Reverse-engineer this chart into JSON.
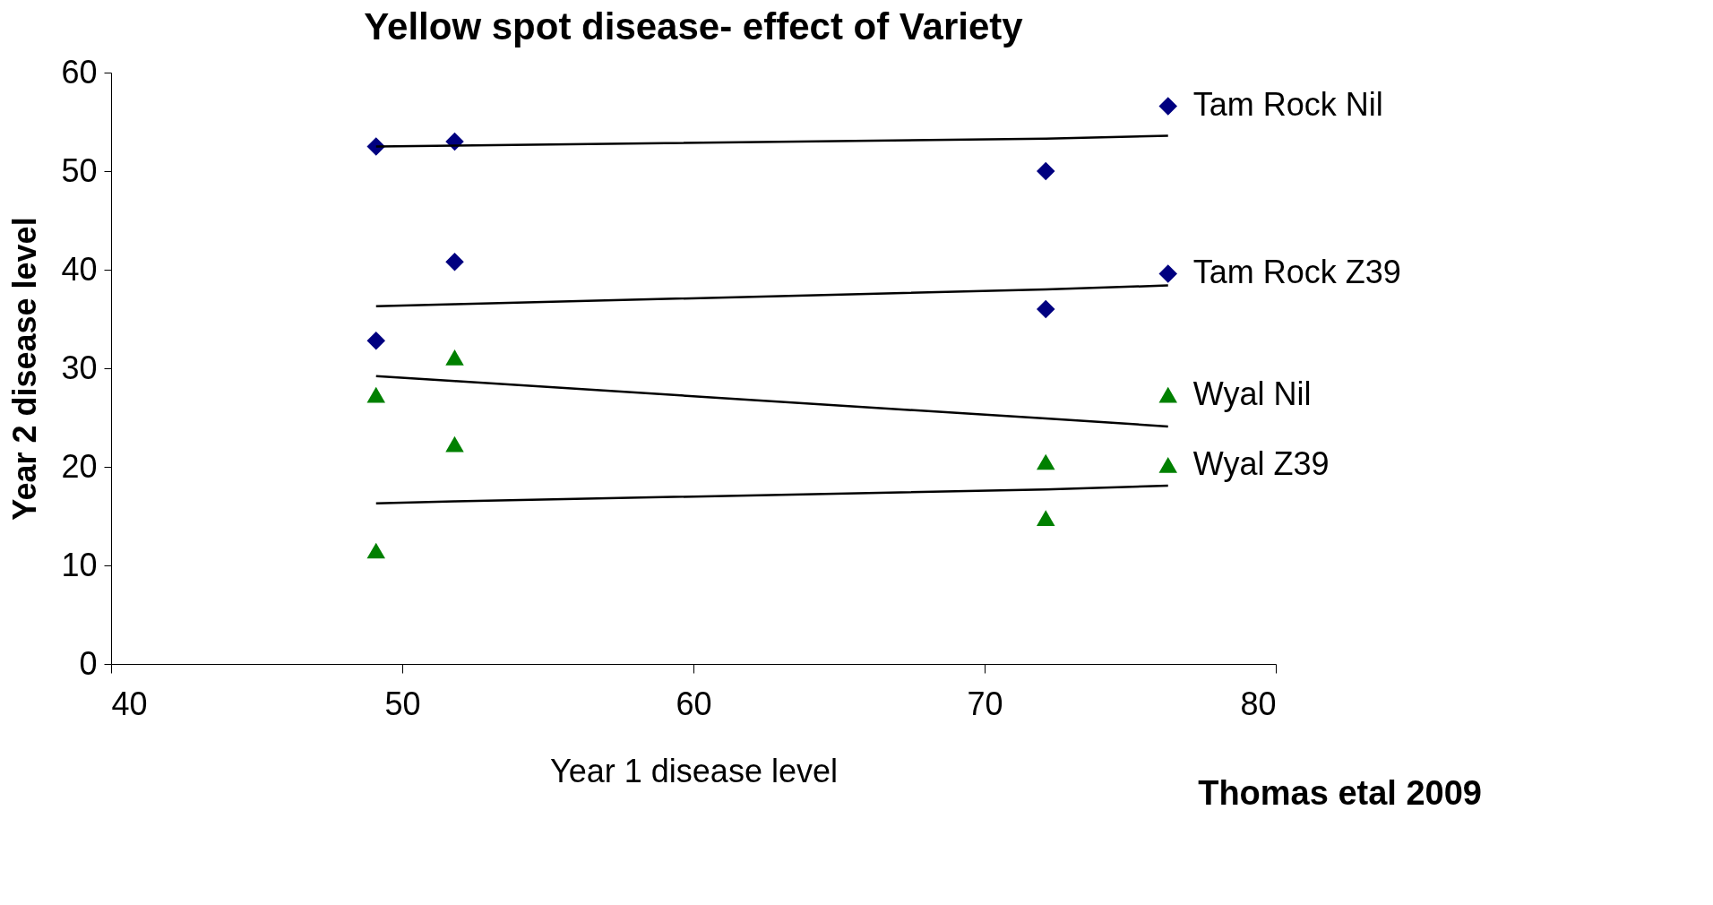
{
  "chart_data": {
    "type": "scatter",
    "title": "Yellow spot disease- effect of Variety",
    "xlabel": "Year 1 disease level",
    "ylabel": "Year 2  disease level",
    "annotations": [
      "Thomas etal 2009"
    ],
    "x": [
      49.1,
      51.8,
      72.1,
      76.3
    ],
    "series": [
      {
        "name": "Tam Rock Nil",
        "color": "#000080",
        "marker": "diamond",
        "values": [
          52.5,
          53.0,
          50.0,
          56.6
        ]
      },
      {
        "name": "Tam Rock Z39",
        "color": "#000080",
        "marker": "diamond",
        "values": [
          32.8,
          40.8,
          36.0,
          39.6
        ]
      },
      {
        "name": "Wyal Nil",
        "color": "#008000",
        "marker": "triangle",
        "values": [
          27.3,
          31.1,
          20.5,
          27.3
        ]
      },
      {
        "name": "Wyal Z39",
        "color": "#008000",
        "marker": "triangle",
        "values": [
          11.5,
          22.3,
          14.8,
          20.2
        ]
      },
      {
        "type": "line",
        "color": "#000000",
        "values": [
          52.5,
          52.6,
          53.3,
          53.6
        ]
      },
      {
        "type": "line",
        "color": "#000000",
        "values": [
          36.3,
          36.5,
          38.0,
          38.4
        ]
      },
      {
        "type": "line",
        "color": "#000000",
        "values": [
          29.2,
          28.7,
          24.9,
          24.1
        ]
      },
      {
        "type": "line",
        "color": "#000000",
        "values": [
          16.3,
          16.5,
          17.7,
          18.1
        ]
      }
    ],
    "xlim": [
      40,
      80
    ],
    "xticks": [
      40,
      50,
      60,
      70,
      80
    ],
    "ylim": [
      0,
      60
    ],
    "yticks": [
      0,
      10,
      20,
      30,
      40,
      50,
      60
    ]
  }
}
